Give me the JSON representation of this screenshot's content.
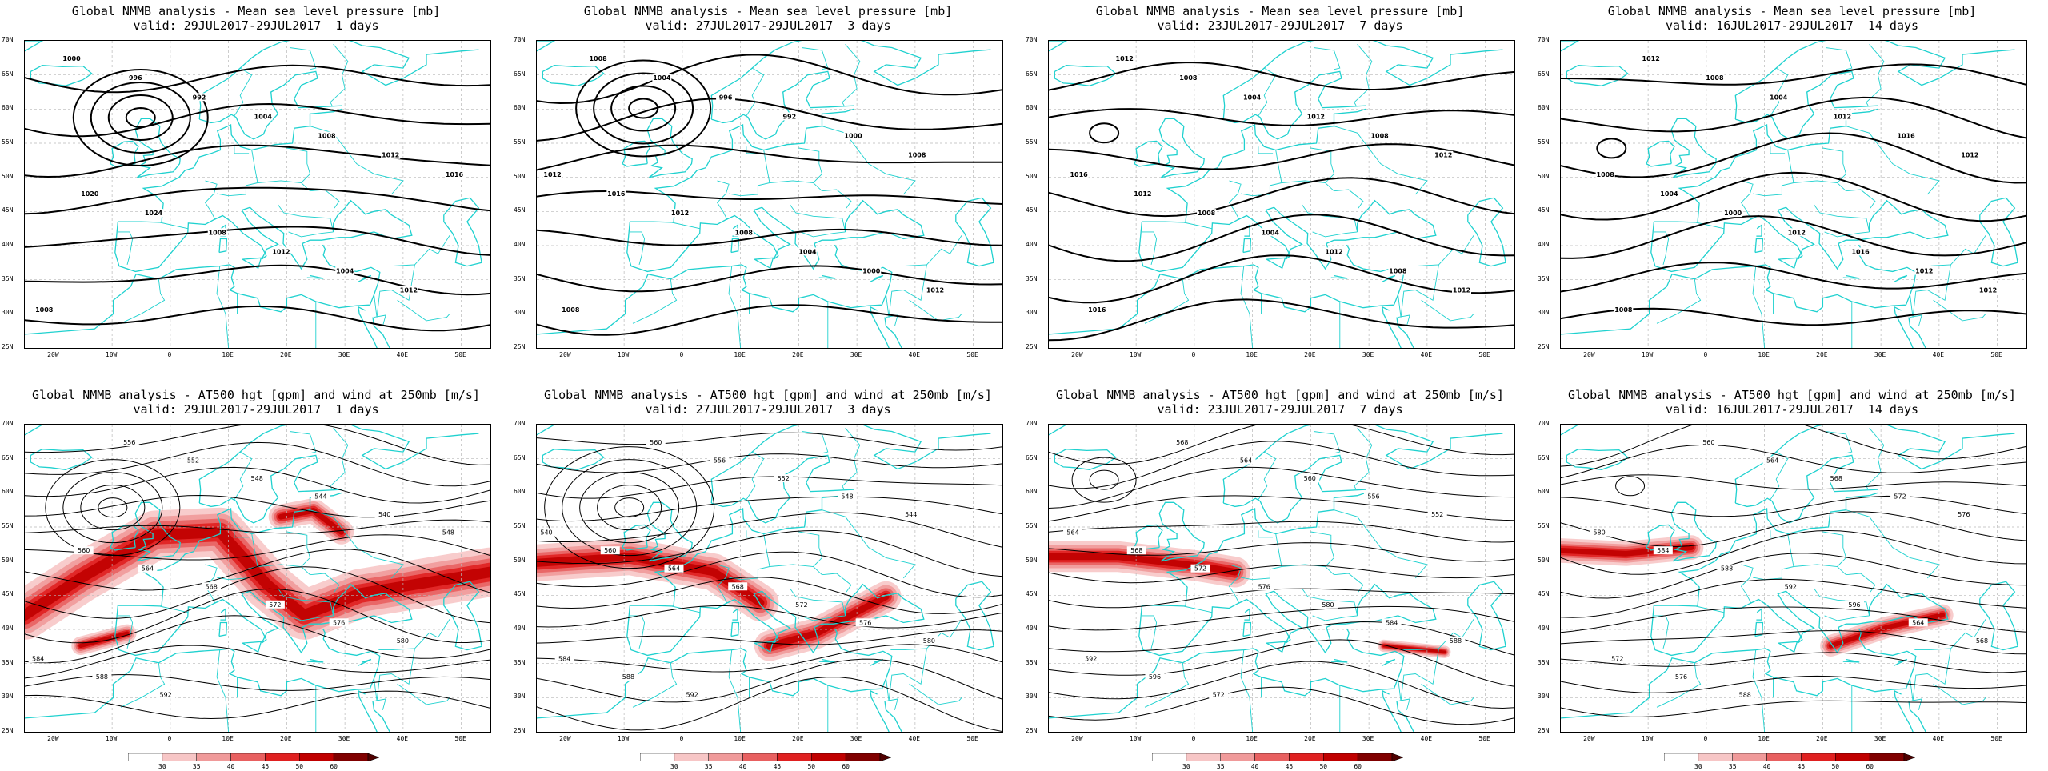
{
  "colors": {
    "coast": "#1fd1cf",
    "contour": "#000000",
    "grid": "#b8b8b8",
    "jet": [
      "#f7c6c6",
      "#f09a9a",
      "#e86060",
      "#e02020",
      "#c00000",
      "#800000"
    ]
  },
  "axes": {
    "lat_labels": [
      "70N",
      "65N",
      "60N",
      "55N",
      "50N",
      "45N",
      "40N",
      "35N",
      "30N",
      "25N"
    ],
    "lon_labels": [
      "20W",
      "10W",
      "0",
      "10E",
      "20E",
      "30E",
      "40E",
      "50E"
    ]
  },
  "colorbar": {
    "labels": [
      "30",
      "35",
      "40",
      "45",
      "50",
      "60"
    ]
  },
  "panels": [
    {
      "title": "Global NMMB analysis - Mean sea level pressure [mb]",
      "valid": "valid: 29JUL2017-29JUL2017  1 days",
      "type": "mslp",
      "contour_labels": [
        "1000",
        "996",
        "992",
        "1004",
        "1008",
        "1012",
        "1016",
        "1020",
        "1024",
        "1008",
        "1012",
        "1004",
        "1012",
        "1008"
      ],
      "jets": []
    },
    {
      "title": "Global NMMB analysis - Mean sea level pressure [mb]",
      "valid": "valid: 27JUL2017-29JUL2017  3 days",
      "type": "mslp",
      "contour_labels": [
        "1008",
        "1004",
        "996",
        "992",
        "1000",
        "1008",
        "1012",
        "1016",
        "1012",
        "1008",
        "1004",
        "1000",
        "1012",
        "1008"
      ],
      "jets": []
    },
    {
      "title": "Global NMMB analysis - Mean sea level pressure [mb]",
      "valid": "valid: 23JUL2017-29JUL2017  7 days",
      "type": "mslp",
      "contour_labels": [
        "1012",
        "1008",
        "1004",
        "1012",
        "1008",
        "1012",
        "1016",
        "1012",
        "1008",
        "1004",
        "1012",
        "1008",
        "1012",
        "1016"
      ],
      "jets": []
    },
    {
      "title": "Global NMMB analysis - Mean sea level pressure [mb]",
      "valid": "valid: 16JUL2017-29JUL2017  14 days",
      "type": "mslp",
      "contour_labels": [
        "1012",
        "1008",
        "1004",
        "1012",
        "1016",
        "1012",
        "1008",
        "1004",
        "1000",
        "1012",
        "1016",
        "1012",
        "1012",
        "1008"
      ],
      "jets": []
    },
    {
      "title": "Global NMMB analysis - AT500 hgt [gpm] and wind at 250mb [m/s]",
      "valid": "valid: 29JUL2017-29JUL2017  1 days",
      "type": "z500",
      "contour_labels": [
        "556",
        "552",
        "548",
        "544",
        "540",
        "548",
        "560",
        "564",
        "568",
        "572",
        "576",
        "580",
        "584",
        "588",
        "592"
      ],
      "jets": [
        {
          "path": [
            [
              0,
              0.62
            ],
            [
              0.12,
              0.5
            ],
            [
              0.28,
              0.36
            ],
            [
              0.42,
              0.35
            ],
            [
              0.52,
              0.52
            ],
            [
              0.6,
              0.62
            ],
            [
              0.72,
              0.55
            ],
            [
              1,
              0.48
            ]
          ],
          "width": 0.16
        },
        {
          "path": [
            [
              0.55,
              0.3
            ],
            [
              0.62,
              0.28
            ],
            [
              0.68,
              0.35
            ]
          ],
          "width": 0.08
        },
        {
          "path": [
            [
              0.12,
              0.72
            ],
            [
              0.22,
              0.68
            ]
          ],
          "width": 0.06
        }
      ]
    },
    {
      "title": "Global NMMB analysis - AT500 hgt [gpm] and wind at 250mb [m/s]",
      "valid": "valid: 27JUL2017-29JUL2017  3 days",
      "type": "z500",
      "contour_labels": [
        "560",
        "556",
        "552",
        "548",
        "544",
        "540",
        "560",
        "564",
        "568",
        "572",
        "576",
        "580",
        "584",
        "588",
        "592"
      ],
      "jets": [
        {
          "path": [
            [
              0,
              0.45
            ],
            [
              0.2,
              0.43
            ],
            [
              0.38,
              0.48
            ],
            [
              0.48,
              0.58
            ]
          ],
          "width": 0.12
        },
        {
          "path": [
            [
              0.5,
              0.72
            ],
            [
              0.6,
              0.68
            ],
            [
              0.75,
              0.56
            ]
          ],
          "width": 0.1
        }
      ]
    },
    {
      "title": "Global NMMB analysis - AT500 hgt [gpm] and wind at 250mb [m/s]",
      "valid": "valid: 23JUL2017-29JUL2017  7 days",
      "type": "z500",
      "contour_labels": [
        "568",
        "564",
        "560",
        "556",
        "552",
        "564",
        "568",
        "572",
        "576",
        "580",
        "584",
        "588",
        "592",
        "596",
        "572"
      ],
      "jets": [
        {
          "path": [
            [
              0,
              0.43
            ],
            [
              0.15,
              0.43
            ],
            [
              0.32,
              0.46
            ],
            [
              0.4,
              0.48
            ]
          ],
          "width": 0.1
        },
        {
          "path": [
            [
              0.72,
              0.72
            ],
            [
              0.85,
              0.74
            ]
          ],
          "width": 0.04
        }
      ]
    },
    {
      "title": "Global NMMB analysis - AT500 hgt [gpm] and wind at 250mb [m/s]",
      "valid": "valid: 16JUL2017-29JUL2017  14 days",
      "type": "z500",
      "contour_labels": [
        "560",
        "564",
        "568",
        "572",
        "576",
        "580",
        "584",
        "588",
        "592",
        "596",
        "564",
        "568",
        "572",
        "576",
        "588"
      ],
      "jets": [
        {
          "path": [
            [
              0,
              0.41
            ],
            [
              0.14,
              0.42
            ],
            [
              0.28,
              0.4
            ]
          ],
          "width": 0.08
        },
        {
          "path": [
            [
              0.58,
              0.72
            ],
            [
              0.7,
              0.66
            ],
            [
              0.82,
              0.62
            ]
          ],
          "width": 0.07
        }
      ]
    }
  ]
}
